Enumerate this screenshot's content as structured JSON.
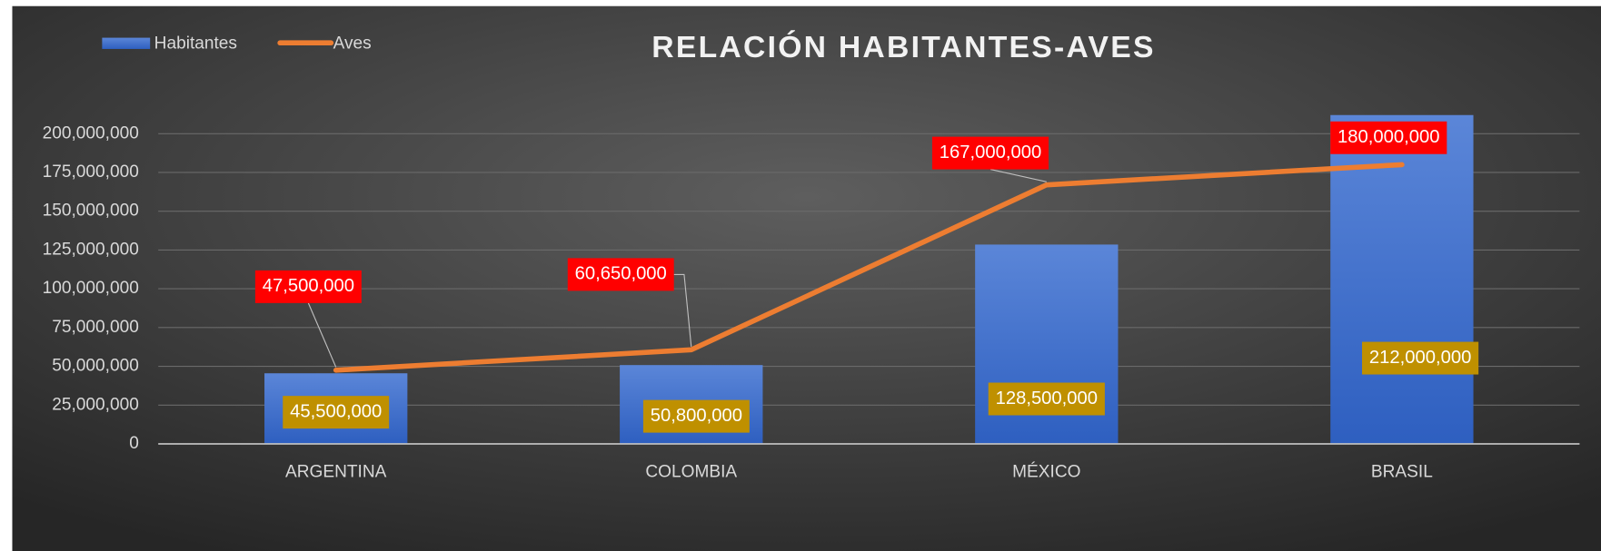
{
  "chart_data": {
    "type": "bar-line",
    "title": "RELACIÓN HABITANTES-AVES",
    "categories": [
      "ARGENTINA",
      "COLOMBIA",
      "MÉXICO",
      "BRASIL"
    ],
    "series": [
      {
        "name": "Habitantes",
        "color": "#4472c4",
        "type": "bar",
        "values": [
          45500000,
          50800000,
          128500000,
          212000000
        ],
        "value_labels": [
          "45,500,000",
          "50,800,000",
          "128,500,000",
          "212,000,000"
        ],
        "label_color": "#bf9000"
      },
      {
        "name": "Aves",
        "color": "#ed7d31",
        "type": "line",
        "values": [
          47500000,
          60650000,
          167000000,
          180000000
        ],
        "value_labels": [
          "47,500,000",
          "60,650,000",
          "167,000,000",
          "180,000,000"
        ],
        "label_color": "#ff0000"
      }
    ],
    "ylim": [
      0,
      225000000
    ],
    "yticks": [
      0,
      {
        "value": 25000000,
        "label": "25,000,000"
      },
      {
        "value": 50000000,
        "label": "50,000,000"
      },
      {
        "value": 75000000,
        "label": "75,000,000"
      },
      {
        "value": 100000000,
        "label": "100,000,000"
      },
      {
        "value": 125000000,
        "label": "125,000,000"
      },
      {
        "value": 150000000,
        "label": "150,000,000"
      },
      {
        "value": 175000000,
        "label": "175,000,000"
      },
      {
        "value": 200000000,
        "label": "200,000,000"
      }
    ],
    "grid": true,
    "legend": "top-left"
  }
}
